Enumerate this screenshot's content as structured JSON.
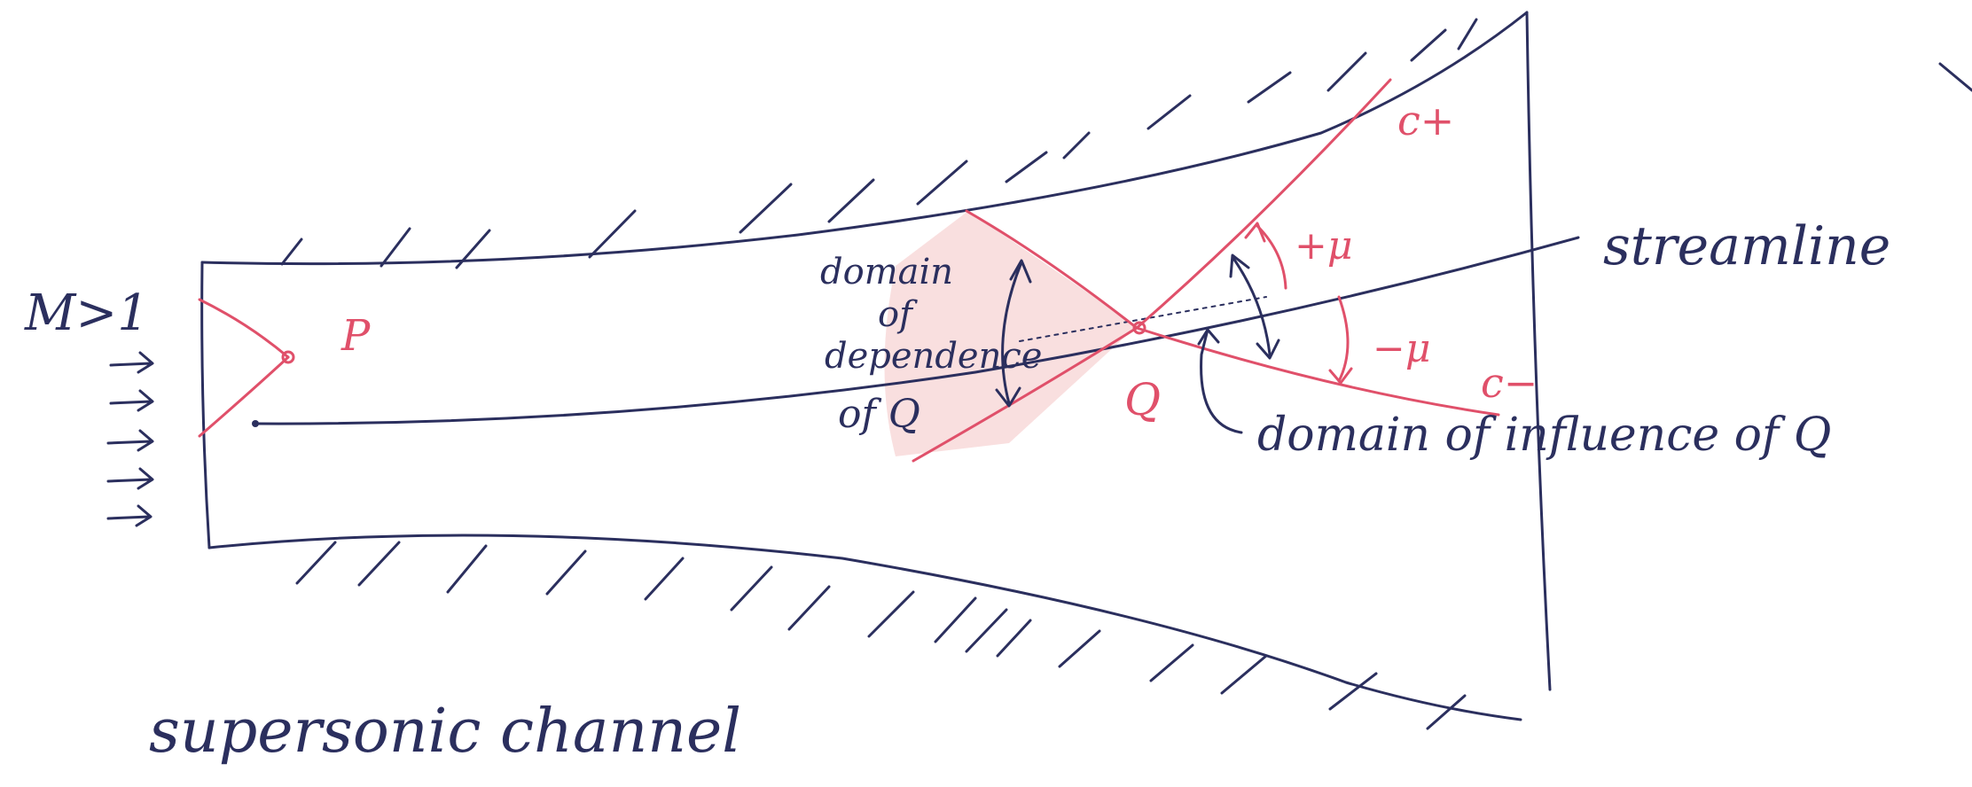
{
  "colors": {
    "ink": "#2b2f5e",
    "red": "#e0506a",
    "shade": "#f2b9b9",
    "paper": "#ffffff"
  },
  "labels": {
    "mach": "M>1",
    "point_p": "P",
    "point_q": "Q",
    "c_plus": "c+",
    "c_minus": "c−",
    "plus_mu": "+μ",
    "minus_mu": "−μ",
    "streamline": "streamline",
    "dependence_line1": "domain",
    "dependence_line2": "of",
    "dependence_line3": "dependence",
    "dependence_line4": "of Q",
    "influence": "domain of influence of Q",
    "caption": "supersonic channel"
  }
}
